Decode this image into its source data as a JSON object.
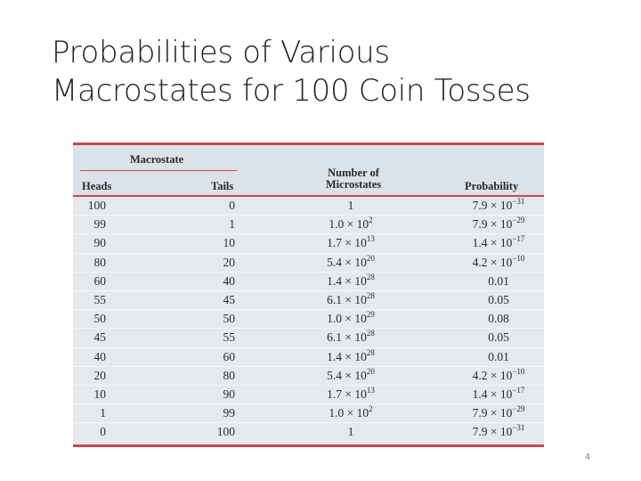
{
  "title": {
    "line1": "Probabilities of Various",
    "line2": "Macrostates for 100 Coin Tosses"
  },
  "table": {
    "group_header": "Macrostate",
    "headers": {
      "heads": "Heads",
      "tails": "Tails",
      "microstates": "Number of Microstates",
      "probability": "Probability"
    },
    "rows": [
      {
        "heads": "100",
        "tails": "0",
        "micro_mant": "1",
        "micro_exp": "",
        "prob_mant": "7.9",
        "prob_exp": "−31"
      },
      {
        "heads": "99",
        "tails": "1",
        "micro_mant": "1.0",
        "micro_exp": "2",
        "prob_mant": "7.9",
        "prob_exp": "−29"
      },
      {
        "heads": "90",
        "tails": "10",
        "micro_mant": "1.7",
        "micro_exp": "13",
        "prob_mant": "1.4",
        "prob_exp": "−17"
      },
      {
        "heads": "80",
        "tails": "20",
        "micro_mant": "5.4",
        "micro_exp": "20",
        "prob_mant": "4.2",
        "prob_exp": "−10"
      },
      {
        "heads": "60",
        "tails": "40",
        "micro_mant": "1.4",
        "micro_exp": "28",
        "prob_mant": "0.01",
        "prob_exp": ""
      },
      {
        "heads": "55",
        "tails": "45",
        "micro_mant": "6.1",
        "micro_exp": "28",
        "prob_mant": "0.05",
        "prob_exp": ""
      },
      {
        "heads": "50",
        "tails": "50",
        "micro_mant": "1.0",
        "micro_exp": "29",
        "prob_mant": "0.08",
        "prob_exp": ""
      },
      {
        "heads": "45",
        "tails": "55",
        "micro_mant": "6.1",
        "micro_exp": "28",
        "prob_mant": "0.05",
        "prob_exp": ""
      },
      {
        "heads": "40",
        "tails": "60",
        "micro_mant": "1.4",
        "micro_exp": "28",
        "prob_mant": "0.01",
        "prob_exp": ""
      },
      {
        "heads": "20",
        "tails": "80",
        "micro_mant": "5.4",
        "micro_exp": "20",
        "prob_mant": "4.2",
        "prob_exp": "−10"
      },
      {
        "heads": "10",
        "tails": "90",
        "micro_mant": "1.7",
        "micro_exp": "13",
        "prob_mant": "1.4",
        "prob_exp": "−17"
      },
      {
        "heads": "1",
        "tails": "99",
        "micro_mant": "1.0",
        "micro_exp": "2",
        "prob_mant": "7.9",
        "prob_exp": "−29"
      },
      {
        "heads": "0",
        "tails": "100",
        "micro_mant": "1",
        "micro_exp": "",
        "prob_mant": "7.9",
        "prob_exp": "−31"
      }
    ]
  },
  "page_number": "4",
  "colors": {
    "rule": "#c9474f",
    "table_bg": "#e4e9ed",
    "text": "#2a2a2a"
  }
}
